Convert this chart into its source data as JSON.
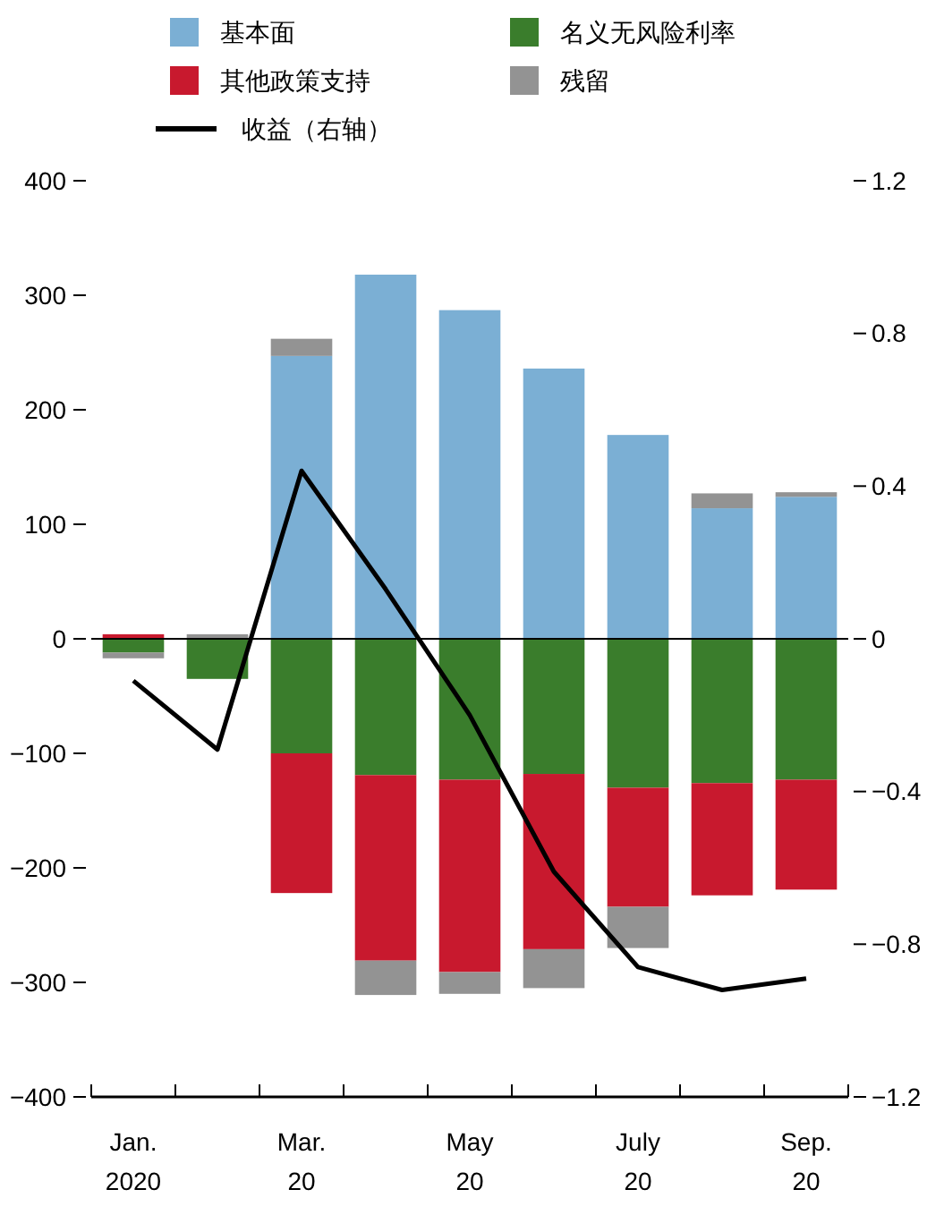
{
  "chart_data": {
    "type": "bar",
    "stacked": true,
    "legend": "top",
    "ref_lines": [
      {
        "axis": "y",
        "value": 0
      }
    ],
    "categories": [
      "Jan.\n2020",
      null,
      "Mar.\n20",
      null,
      "May\n20",
      null,
      "July\n20",
      null,
      "Sep.\n20"
    ],
    "series": [
      {
        "name": "基本面",
        "color": "#7bafd4",
        "values": [
          null,
          null,
          247,
          318,
          287,
          236,
          178,
          114,
          124
        ]
      },
      {
        "name": "名义无风险利率",
        "color": "#3a7d2c",
        "values": [
          -12,
          -35,
          -100,
          -119,
          -123,
          -118,
          -130,
          -126,
          -123
        ]
      },
      {
        "name": "其他政策支持",
        "color": "#c8192e",
        "values": [
          4,
          null,
          -122,
          -162,
          -168,
          -153,
          -104,
          -98,
          -96
        ]
      },
      {
        "name": "残留",
        "color": "#939393",
        "values": [
          -5,
          4,
          15,
          -30,
          -19,
          -34,
          -36,
          13,
          4
        ]
      },
      {
        "name": "收益（右轴）",
        "type": "line",
        "axis": "y2",
        "color": "#000000",
        "marker": "none",
        "line_style": "solid",
        "values": [
          -0.11,
          -0.29,
          0.44,
          0.13,
          -0.2,
          -0.61,
          -0.86,
          -0.92,
          -0.89
        ]
      }
    ],
    "ylim": [
      -400,
      400
    ],
    "yticks": [
      {
        "value": -400,
        "label": "−400"
      },
      {
        "value": -300,
        "label": "−300"
      },
      {
        "value": -200,
        "label": "−200"
      },
      {
        "value": -100,
        "label": "−100"
      },
      0,
      100,
      200,
      300,
      400
    ],
    "y2lim": [
      -1.2,
      1.2
    ],
    "y2ticks": [
      {
        "value": -1.2,
        "label": "−1.2"
      },
      {
        "value": -0.8,
        "label": "−0.8"
      },
      {
        "value": -0.4,
        "label": "−0.4"
      },
      0,
      0.4,
      0.8,
      1.2
    ]
  }
}
